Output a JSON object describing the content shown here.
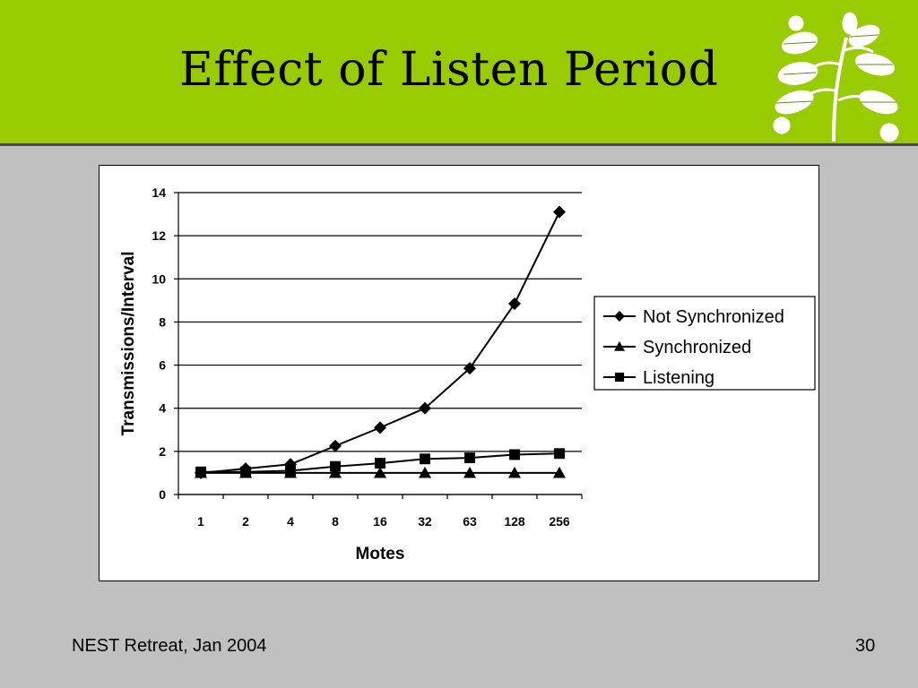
{
  "slide": {
    "title": "Effect of Listen Period",
    "footer_left": "NEST Retreat, Jan 2004",
    "page_number": "30",
    "colors": {
      "banner": "#99cc00",
      "background": "#c0c0c0"
    },
    "logo_icon": "leaf-sprig-icon"
  },
  "chart_data": {
    "type": "line",
    "title": "",
    "xlabel": "Motes",
    "ylabel": "Transmissions/Interval",
    "categories": [
      "1",
      "2",
      "4",
      "8",
      "16",
      "32",
      "63",
      "128",
      "256"
    ],
    "ylim": [
      0,
      14
    ],
    "yticks": [
      "0",
      "2",
      "4",
      "6",
      "8",
      "10",
      "12",
      "14"
    ],
    "grid": true,
    "legend_position": "right",
    "series": [
      {
        "name": "Not Synchronized",
        "marker": "diamond",
        "values": [
          1.0,
          1.2,
          1.4,
          2.25,
          3.1,
          4.0,
          5.85,
          8.85,
          13.1
        ]
      },
      {
        "name": "Synchronized",
        "marker": "triangle",
        "values": [
          1.0,
          1.0,
          1.0,
          1.0,
          1.0,
          1.0,
          1.0,
          1.0,
          1.0
        ]
      },
      {
        "name": "Listening",
        "marker": "square",
        "values": [
          1.05,
          1.05,
          1.1,
          1.3,
          1.45,
          1.65,
          1.7,
          1.85,
          1.9
        ]
      }
    ]
  }
}
